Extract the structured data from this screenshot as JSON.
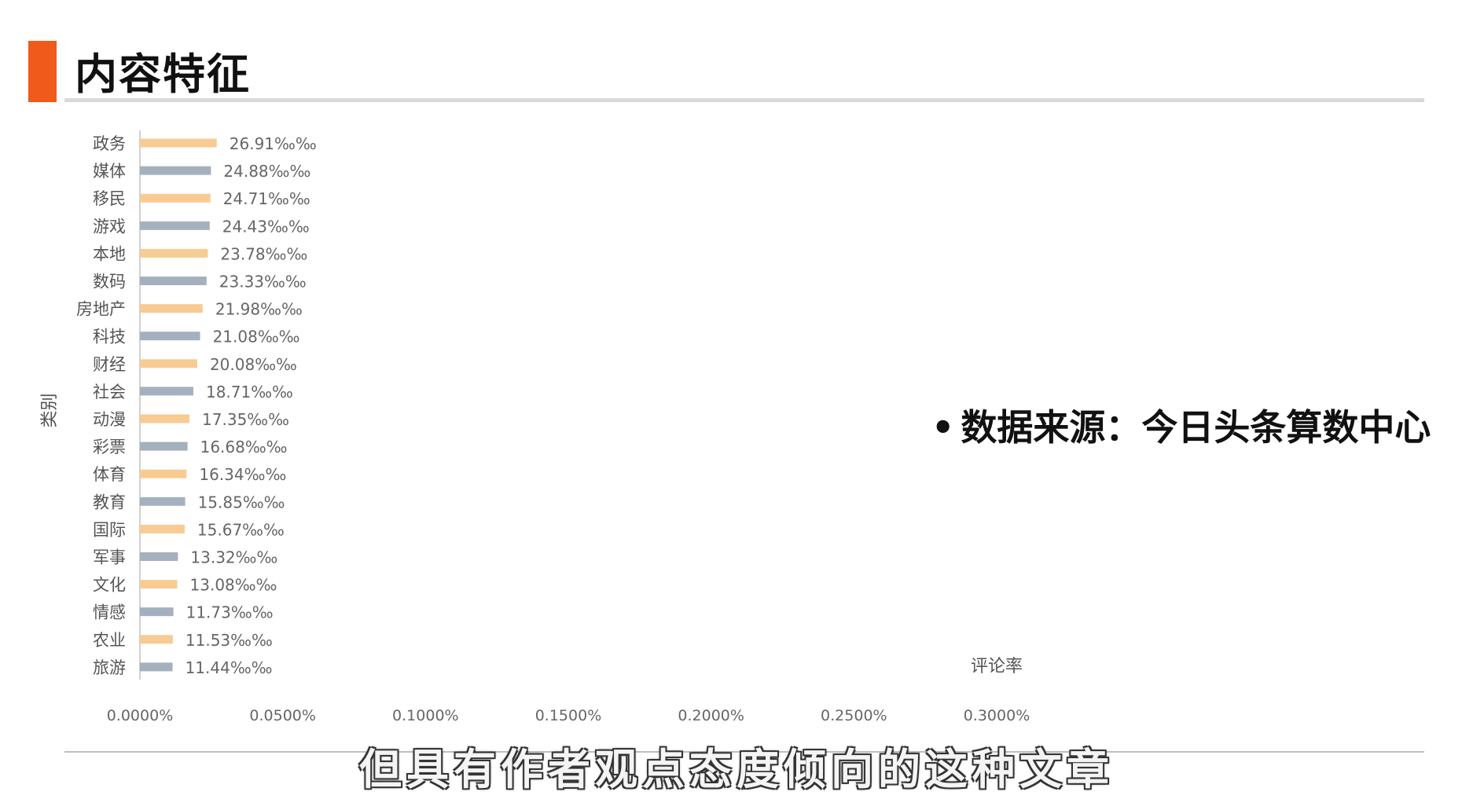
{
  "slide": {
    "title": "内容特征",
    "source_bullet": "•",
    "source": "数据来源：今日头条算数中心",
    "subtitle": "但具有作者观点态度倾向的这种文章"
  },
  "colors": {
    "accent": "#f05a1a",
    "bar_a": "#f8cb93",
    "bar_b": "#a5b0bf"
  },
  "chart_data": {
    "type": "bar",
    "orientation": "horizontal",
    "ylabel": "类别",
    "xlabel": "评论率",
    "xlim": [
      0,
      0.3
    ],
    "xticks": [
      "0.0000%",
      "0.0500%",
      "0.1000%",
      "0.1500%",
      "0.2000%",
      "0.2500%",
      "0.3000%"
    ],
    "grid": false,
    "categories": [
      "政务",
      "媒体",
      "移民",
      "游戏",
      "本地",
      "数码",
      "房地产",
      "科技",
      "财经",
      "社会",
      "动漫",
      "彩票",
      "体育",
      "教育",
      "国际",
      "军事",
      "文化",
      "情感",
      "农业",
      "旅游"
    ],
    "values": [
      26.91,
      24.88,
      24.71,
      24.43,
      23.78,
      23.33,
      21.98,
      21.08,
      20.08,
      18.71,
      17.35,
      16.68,
      16.34,
      15.85,
      15.67,
      13.32,
      13.08,
      11.73,
      11.53,
      11.44
    ],
    "value_unit": "‰‰",
    "data_labels": [
      "26.91‰‰",
      "24.88‰‰",
      "24.71‰‰",
      "24.43‰‰",
      "23.78‰‰",
      "23.33‰‰",
      "21.98‰‰",
      "21.08‰‰",
      "20.08‰‰",
      "18.71‰‰",
      "17.35‰‰",
      "16.68‰‰",
      "16.34‰‰",
      "15.85‰‰",
      "15.67‰‰",
      "13.32‰‰",
      "13.08‰‰",
      "11.73‰‰",
      "11.53‰‰",
      "11.44‰‰"
    ]
  }
}
